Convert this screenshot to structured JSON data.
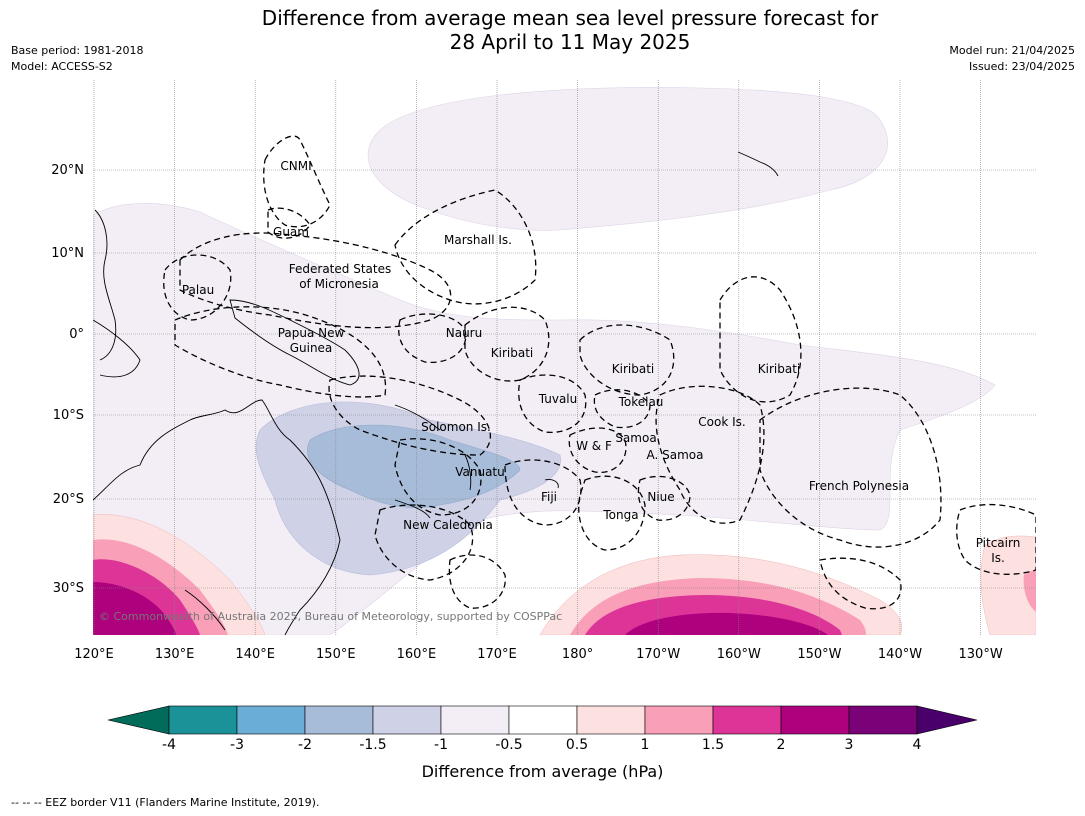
{
  "title_line1": "Difference from average mean sea level pressure forecast for",
  "title_line2": "28 April to 11 May 2025",
  "meta_left": {
    "line1": "Base period: 1981-2018",
    "line2": "Model: ACCESS-S2"
  },
  "meta_right": {
    "line1": "Model run: 21/04/2025",
    "line2": "Issued: 23/04/2025"
  },
  "copyright": "© Commonwealth of Australia 2025, Bureau of Meteorology, supported by COSPPac",
  "lon_labels": [
    "120°E",
    "130°E",
    "140°E",
    "150°E",
    "160°E",
    "170°E",
    "180°",
    "170°W",
    "160°W",
    "150°W",
    "140°W",
    "130°W"
  ],
  "lat_labels": [
    "20°N",
    "10°N",
    "0°",
    "10°S",
    "20°S",
    "30°S"
  ],
  "regions": [
    {
      "label": "CNMI"
    },
    {
      "label": "Guam"
    },
    {
      "label": "Marshall Is."
    },
    {
      "label": "Federated States"
    },
    {
      "label": "of Micronesia"
    },
    {
      "label": "Palau"
    },
    {
      "label": "Papua New"
    },
    {
      "label": "Guinea"
    },
    {
      "label": "Nauru"
    },
    {
      "label": "Kiribati"
    },
    {
      "label": "Kiribati"
    },
    {
      "label": "Kiribati"
    },
    {
      "label": "Tuvalu"
    },
    {
      "label": "Tokelau"
    },
    {
      "label": "Cook Is."
    },
    {
      "label": "Solomon Is."
    },
    {
      "label": "Samoa"
    },
    {
      "label": "W & F"
    },
    {
      "label": "A. Samoa"
    },
    {
      "label": "Vanuatu"
    },
    {
      "label": "Fiji"
    },
    {
      "label": "Niue"
    },
    {
      "label": "French Polynesia"
    },
    {
      "label": "Tonga"
    },
    {
      "label": "New Caledonia"
    },
    {
      "label": "Pitcairn"
    },
    {
      "label": "Is."
    }
  ],
  "colorbar": {
    "ticks": [
      "-4",
      "-3",
      "-2",
      "-1.5",
      "-1",
      "-0.5",
      "0.5",
      "1",
      "1.5",
      "2",
      "3",
      "4"
    ],
    "colors": [
      "#1b9297",
      "#6aaed6",
      "#a7bcd9",
      "#cfd1e6",
      "#f3eef6",
      "#ffffff",
      "#fde0e0",
      "#f99fb8",
      "#dd3497",
      "#ae017e",
      "#7a0177"
    ],
    "low_extend_color": "#016c59",
    "high_extend_color": "#49006a",
    "label": "Difference from average (hPa)"
  },
  "legend_footer": "--  --  -- EEZ border V11 (Flanders Marine Institute, 2019)."
}
